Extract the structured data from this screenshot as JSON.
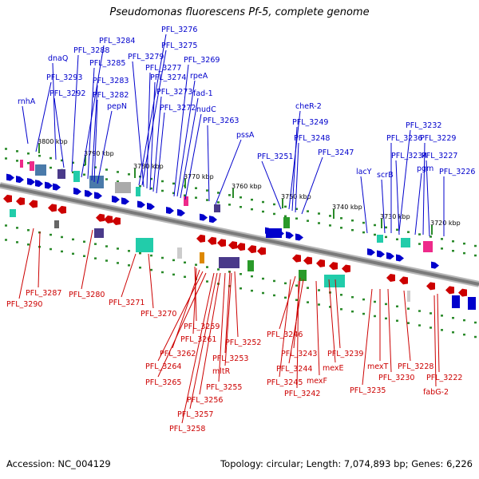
{
  "header": {
    "title": "Pseudomonas fluorescens Pf-5, complete genome"
  },
  "footer": {
    "accession": "Accession: NC_004129",
    "summary": "Topology: circular; Length: 7,074,893 bp; Genes: 6,226"
  },
  "colors": {
    "forward": "#0000cc",
    "reverse": "#cc0000",
    "backbone": "#7a7a7a",
    "tick_dot": "#2a8a2a",
    "accent_pink": "#ee2a8a",
    "accent_teal": "#22ccaa",
    "accent_steel": "#4a7aaa",
    "accent_purple": "#4a3a8a",
    "accent_green": "#2a9a2a"
  },
  "ticks": [
    {
      "label": "3800 kbp"
    },
    {
      "label": "3790 kbp"
    },
    {
      "label": "3780 kbp"
    },
    {
      "label": "3770 kbp"
    },
    {
      "label": "3760 kbp"
    },
    {
      "label": "3750 kbp"
    },
    {
      "label": "3740 kbp"
    },
    {
      "label": "3730 kbp"
    },
    {
      "label": "3720 kbp"
    }
  ],
  "forward_genes": [
    {
      "label": "rnhA"
    },
    {
      "label": "PFL_3293"
    },
    {
      "label": "dnaQ"
    },
    {
      "label": "PFL_3292"
    },
    {
      "label": "PFL_3288"
    },
    {
      "label": "PFL_3284"
    },
    {
      "label": "PFL_3285"
    },
    {
      "label": "PFL_3283"
    },
    {
      "label": "PFL_3282"
    },
    {
      "label": "pepN"
    },
    {
      "label": "PFL_3276"
    },
    {
      "label": "PFL_3275"
    },
    {
      "label": "PFL_3279"
    },
    {
      "label": "PFL_3277"
    },
    {
      "label": "PFL_3274"
    },
    {
      "label": "PFL_3273"
    },
    {
      "label": "PFL_3272"
    },
    {
      "label": "PFL_3269"
    },
    {
      "label": "rpeA"
    },
    {
      "label": "fad-1"
    },
    {
      "label": "nudC"
    },
    {
      "label": "PFL_3263"
    },
    {
      "label": "pssA"
    },
    {
      "label": "cheR-2"
    },
    {
      "label": "PFL_3249"
    },
    {
      "label": "PFL_3248"
    },
    {
      "label": "PFL_3251"
    },
    {
      "label": "PFL_3247"
    },
    {
      "label": "PFL_3232"
    },
    {
      "label": "PFL_3236"
    },
    {
      "label": "PFL_3229"
    },
    {
      "label": "PFL_3234"
    },
    {
      "label": "pgm"
    },
    {
      "label": "PFL_3227"
    },
    {
      "label": "lacY"
    },
    {
      "label": "scrB"
    },
    {
      "label": "PFL_3226"
    }
  ],
  "reverse_genes": [
    {
      "label": "PFL_3287"
    },
    {
      "label": "PFL_3290"
    },
    {
      "label": "PFL_3280"
    },
    {
      "label": "PFL_3271"
    },
    {
      "label": "PFL_3270"
    },
    {
      "label": "PFL_3259"
    },
    {
      "label": "PFL_3261"
    },
    {
      "label": "PFL_3262"
    },
    {
      "label": "PFL_3264"
    },
    {
      "label": "PFL_3265"
    },
    {
      "label": "PFL_3252"
    },
    {
      "label": "PFL_3253"
    },
    {
      "label": "mltR"
    },
    {
      "label": "PFL_3255"
    },
    {
      "label": "PFL_3256"
    },
    {
      "label": "PFL_3257"
    },
    {
      "label": "PFL_3258"
    },
    {
      "label": "PFL_3246"
    },
    {
      "label": "PFL_3243"
    },
    {
      "label": "PFL_3239"
    },
    {
      "label": "PFL_3244"
    },
    {
      "label": "mexE"
    },
    {
      "label": "PFL_3245"
    },
    {
      "label": "mexF"
    },
    {
      "label": "PFL_3242"
    },
    {
      "label": "mexT"
    },
    {
      "label": "PFL_3230"
    },
    {
      "label": "PFL_3235"
    },
    {
      "label": "PFL_3228"
    },
    {
      "label": "PFL_3222"
    },
    {
      "label": "fabG-2"
    }
  ]
}
